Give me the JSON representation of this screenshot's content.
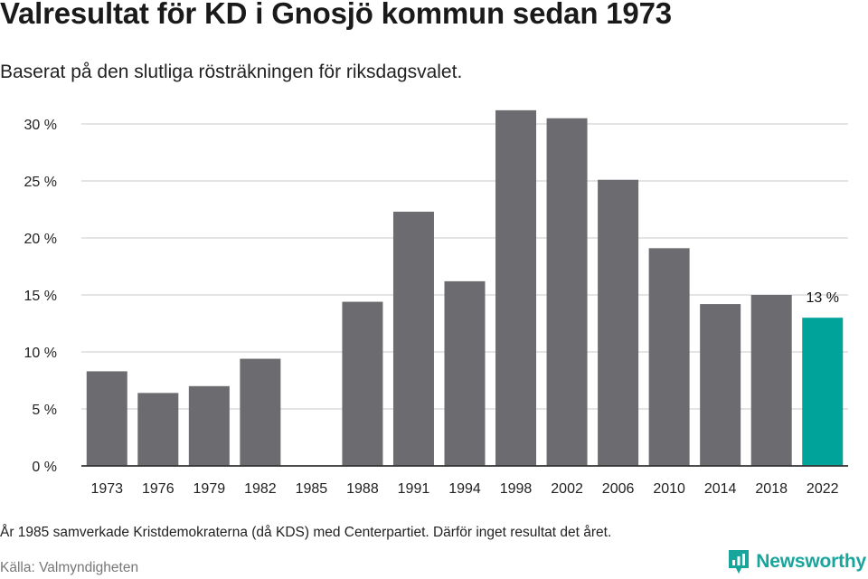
{
  "title": "Valresultat för KD i Gnosjö kommun sedan 1973",
  "subtitle": "Baserat på den slutliga rösträkningen för riksdagsvalet.",
  "note": "År 1985 samverkade Kristdemokraterna (då KDS) med Centerpartiet. Därför inget resultat det året.",
  "source": "Källa: Valmyndigheten",
  "brand": {
    "name": "Newsworthy",
    "icon": "newsworthy-logo-icon"
  },
  "colors": {
    "bar": "#6c6b70",
    "highlight": "#00a39a",
    "grid": "#dcdcdc",
    "axis": "#333333",
    "brand": "#17a59c"
  },
  "chart_data": {
    "type": "bar",
    "categories": [
      "1973",
      "1976",
      "1979",
      "1982",
      "1985",
      "1988",
      "1991",
      "1994",
      "1998",
      "2002",
      "2006",
      "2010",
      "2014",
      "2018",
      "2022"
    ],
    "values": [
      8.3,
      6.4,
      7.0,
      9.4,
      null,
      14.4,
      22.3,
      16.2,
      31.2,
      30.5,
      25.1,
      19.1,
      14.2,
      15.0,
      13.0
    ],
    "highlight_index": 14,
    "data_labels": [
      {
        "index": 14,
        "text": "13 %"
      }
    ],
    "yticks": [
      "0 %",
      "5 %",
      "10 %",
      "15 %",
      "20 %",
      "25 %",
      "30 %"
    ],
    "ytick_values": [
      0,
      5,
      10,
      15,
      20,
      25,
      30
    ],
    "ylim": [
      0,
      31.5
    ],
    "grid": true,
    "legend": "none"
  }
}
